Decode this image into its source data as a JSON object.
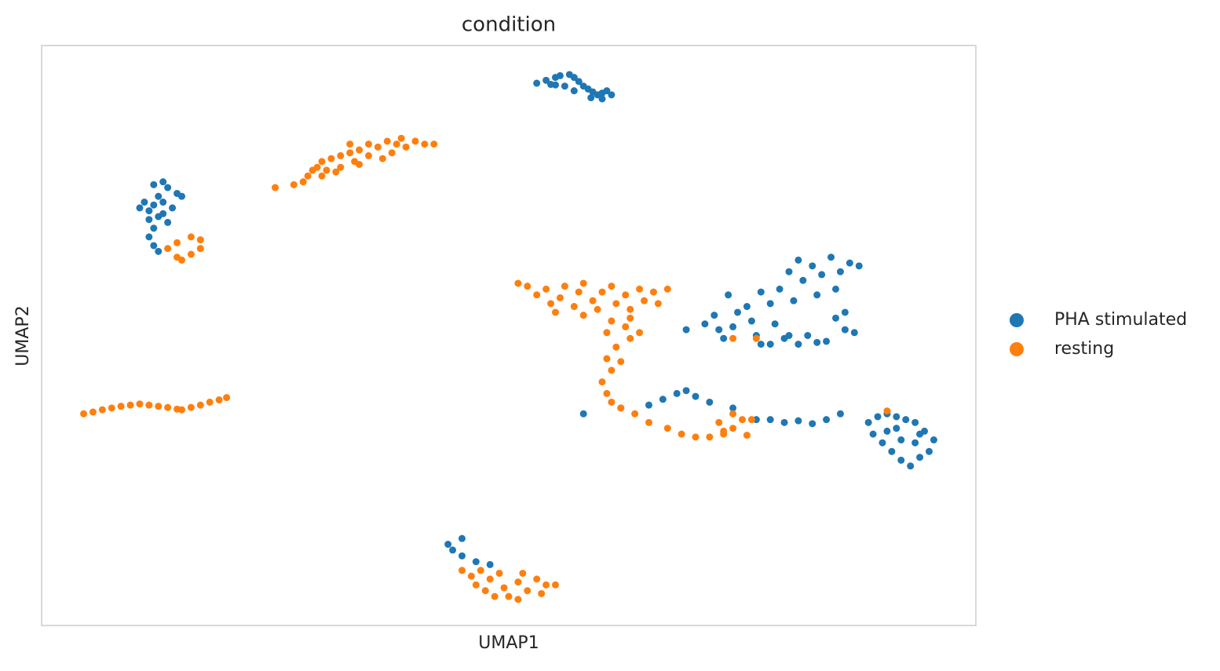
{
  "chart_data": {
    "type": "scatter",
    "title": "condition",
    "xlabel": "UMAP1",
    "ylabel": "UMAP2",
    "xlim": [
      0,
      100
    ],
    "ylim": [
      0,
      100
    ],
    "legend": "right",
    "series": [
      {
        "name": "PHA stimulated",
        "color": "#1f77b4",
        "x": [
          53,
          54,
          55,
          55.5,
          56.5,
          57,
          57.5,
          58,
          58.5,
          59,
          59.5,
          60,
          60.5,
          61,
          56,
          57,
          55,
          58.8,
          60,
          54.5,
          12,
          13,
          13.5,
          14.5,
          12.5,
          11,
          10.5,
          11.5,
          12,
          13,
          14,
          15,
          12.5,
          11.5,
          13,
          12,
          11.5,
          12,
          12.5,
          13.5,
          71,
          72,
          72.5,
          73,
          74,
          74.5,
          75.5,
          76,
          76.5,
          77,
          78,
          78.5,
          79,
          79.5,
          80,
          80.5,
          81,
          81.5,
          82,
          82.5,
          83,
          83.5,
          84,
          84.5,
          85,
          85.5,
          86,
          86.5,
          87,
          87.5,
          81,
          80,
          83,
          78,
          69,
          73.5,
          77,
          85,
          86,
          65,
          66.5,
          68,
          69,
          70,
          71.5,
          74,
          76.5,
          78,
          79.5,
          81,
          82.5,
          84,
          85.5,
          58,
          62,
          88.5,
          89.5,
          90.5,
          91.5,
          92.5,
          93.5,
          94.5,
          95.5,
          95,
          94,
          93,
          92,
          91,
          90,
          89,
          90.5,
          92,
          93.5,
          91.5,
          94,
          43.5,
          44,
          45,
          45,
          46.5,
          48
        ],
        "y": [
          93.5,
          94,
          94.5,
          94.8,
          95,
          94.5,
          93.8,
          93,
          92.5,
          92,
          91.5,
          91.8,
          92.2,
          91.5,
          93,
          92.2,
          93.2,
          91,
          90.8,
          93.3,
          76,
          76.5,
          75.5,
          74.5,
          74,
          73,
          72,
          71.5,
          72.5,
          73,
          72,
          74,
          70.5,
          70,
          71,
          68.5,
          67,
          65.5,
          64.5,
          69.5,
          52,
          53.5,
          51,
          49.5,
          51.5,
          54,
          55,
          52.5,
          50,
          48.5,
          55.5,
          52,
          58,
          49.5,
          61,
          56,
          63,
          59.5,
          50,
          62,
          57,
          60.5,
          49,
          63.5,
          53,
          61,
          51,
          62.5,
          50.5,
          62,
          48.5,
          50,
          48.8,
          48.5,
          51,
          57,
          57.5,
          58,
          54,
          38,
          39,
          40,
          40.5,
          39.5,
          38.5,
          37.5,
          35.5,
          35.5,
          35,
          35.3,
          34.8,
          35.5,
          36.5,
          36.5,
          37.5,
          35,
          36,
          36.5,
          36,
          35.5,
          35,
          33.5,
          32,
          30,
          29,
          27.5,
          28.5,
          30,
          31.5,
          33,
          33.5,
          32,
          31.5,
          34,
          33,
          14,
          13,
          15,
          12,
          11,
          10.5
        ]
      },
      {
        "name": "resting",
        "color": "#ff7f0e",
        "x": [
          25,
          27,
          28,
          28.5,
          29,
          29.5,
          30,
          30.5,
          31,
          32,
          32,
          33,
          33.5,
          34,
          35,
          35,
          36,
          36.5,
          37,
          38,
          38.5,
          39,
          40,
          41,
          42,
          30,
          31.5,
          34,
          33,
          37.5,
          13.5,
          14.5,
          15,
          16,
          17,
          17,
          16,
          14.5,
          4.5,
          5.5,
          6.5,
          7.5,
          8.5,
          9.5,
          10.5,
          11.5,
          12.5,
          13.5,
          14.5,
          15,
          16,
          17,
          18,
          19,
          19.8,
          51,
          52,
          53,
          54,
          54.5,
          55.5,
          56,
          57,
          57.5,
          58,
          59,
          59.5,
          60,
          61,
          61.5,
          62.5,
          63,
          64,
          64.5,
          65.5,
          66,
          67,
          58,
          55,
          63,
          61,
          60.5,
          61.5,
          63,
          60.5,
          61,
          62,
          60,
          60.5,
          61,
          62,
          63.5,
          65,
          67,
          68.5,
          70,
          71.5,
          73,
          74,
          75,
          74,
          73,
          72.5,
          76,
          75.5,
          64,
          62.5,
          45,
          46,
          46.5,
          47.5,
          48,
          49,
          49.5,
          50,
          51,
          51.5,
          52,
          53,
          53.5,
          54,
          55,
          48.5,
          51,
          47,
          74,
          76.5,
          90.5
        ],
        "y": [
          75.5,
          76,
          76.5,
          77.5,
          78.5,
          79,
          80,
          78.5,
          80.5,
          81,
          79,
          81.5,
          80,
          82,
          81,
          83,
          82.5,
          80.5,
          83.5,
          83,
          84,
          82.5,
          83.5,
          83,
          83,
          77.5,
          78.2,
          79.5,
          83,
          81.5,
          65,
          63.5,
          63,
          64,
          65,
          66.5,
          67,
          66,
          36.5,
          36.8,
          37.2,
          37.5,
          37.8,
          38,
          38.2,
          38,
          37.8,
          37.6,
          37.3,
          37.2,
          37.6,
          38,
          38.5,
          38.9,
          39.3,
          59,
          58.5,
          57,
          58,
          55.5,
          56.5,
          58.5,
          55,
          57.5,
          59,
          56,
          54.5,
          57.5,
          58.5,
          55.5,
          57,
          54.5,
          58,
          56,
          57.5,
          55.5,
          58,
          53.5,
          54,
          53,
          52.5,
          50.5,
          48,
          49.5,
          46,
          44,
          45.5,
          42,
          40,
          38.5,
          37.5,
          36.5,
          35,
          34,
          33,
          32.5,
          32.5,
          33.5,
          34,
          35.5,
          36.5,
          33,
          35,
          35.5,
          32.8,
          50.5,
          51.5,
          9.5,
          8.5,
          7,
          6,
          8,
          9,
          6.5,
          5,
          7.5,
          9,
          6,
          8,
          5.5,
          7,
          7,
          5,
          4.5,
          9.5,
          49.5,
          49.5,
          37
        ]
      }
    ]
  }
}
